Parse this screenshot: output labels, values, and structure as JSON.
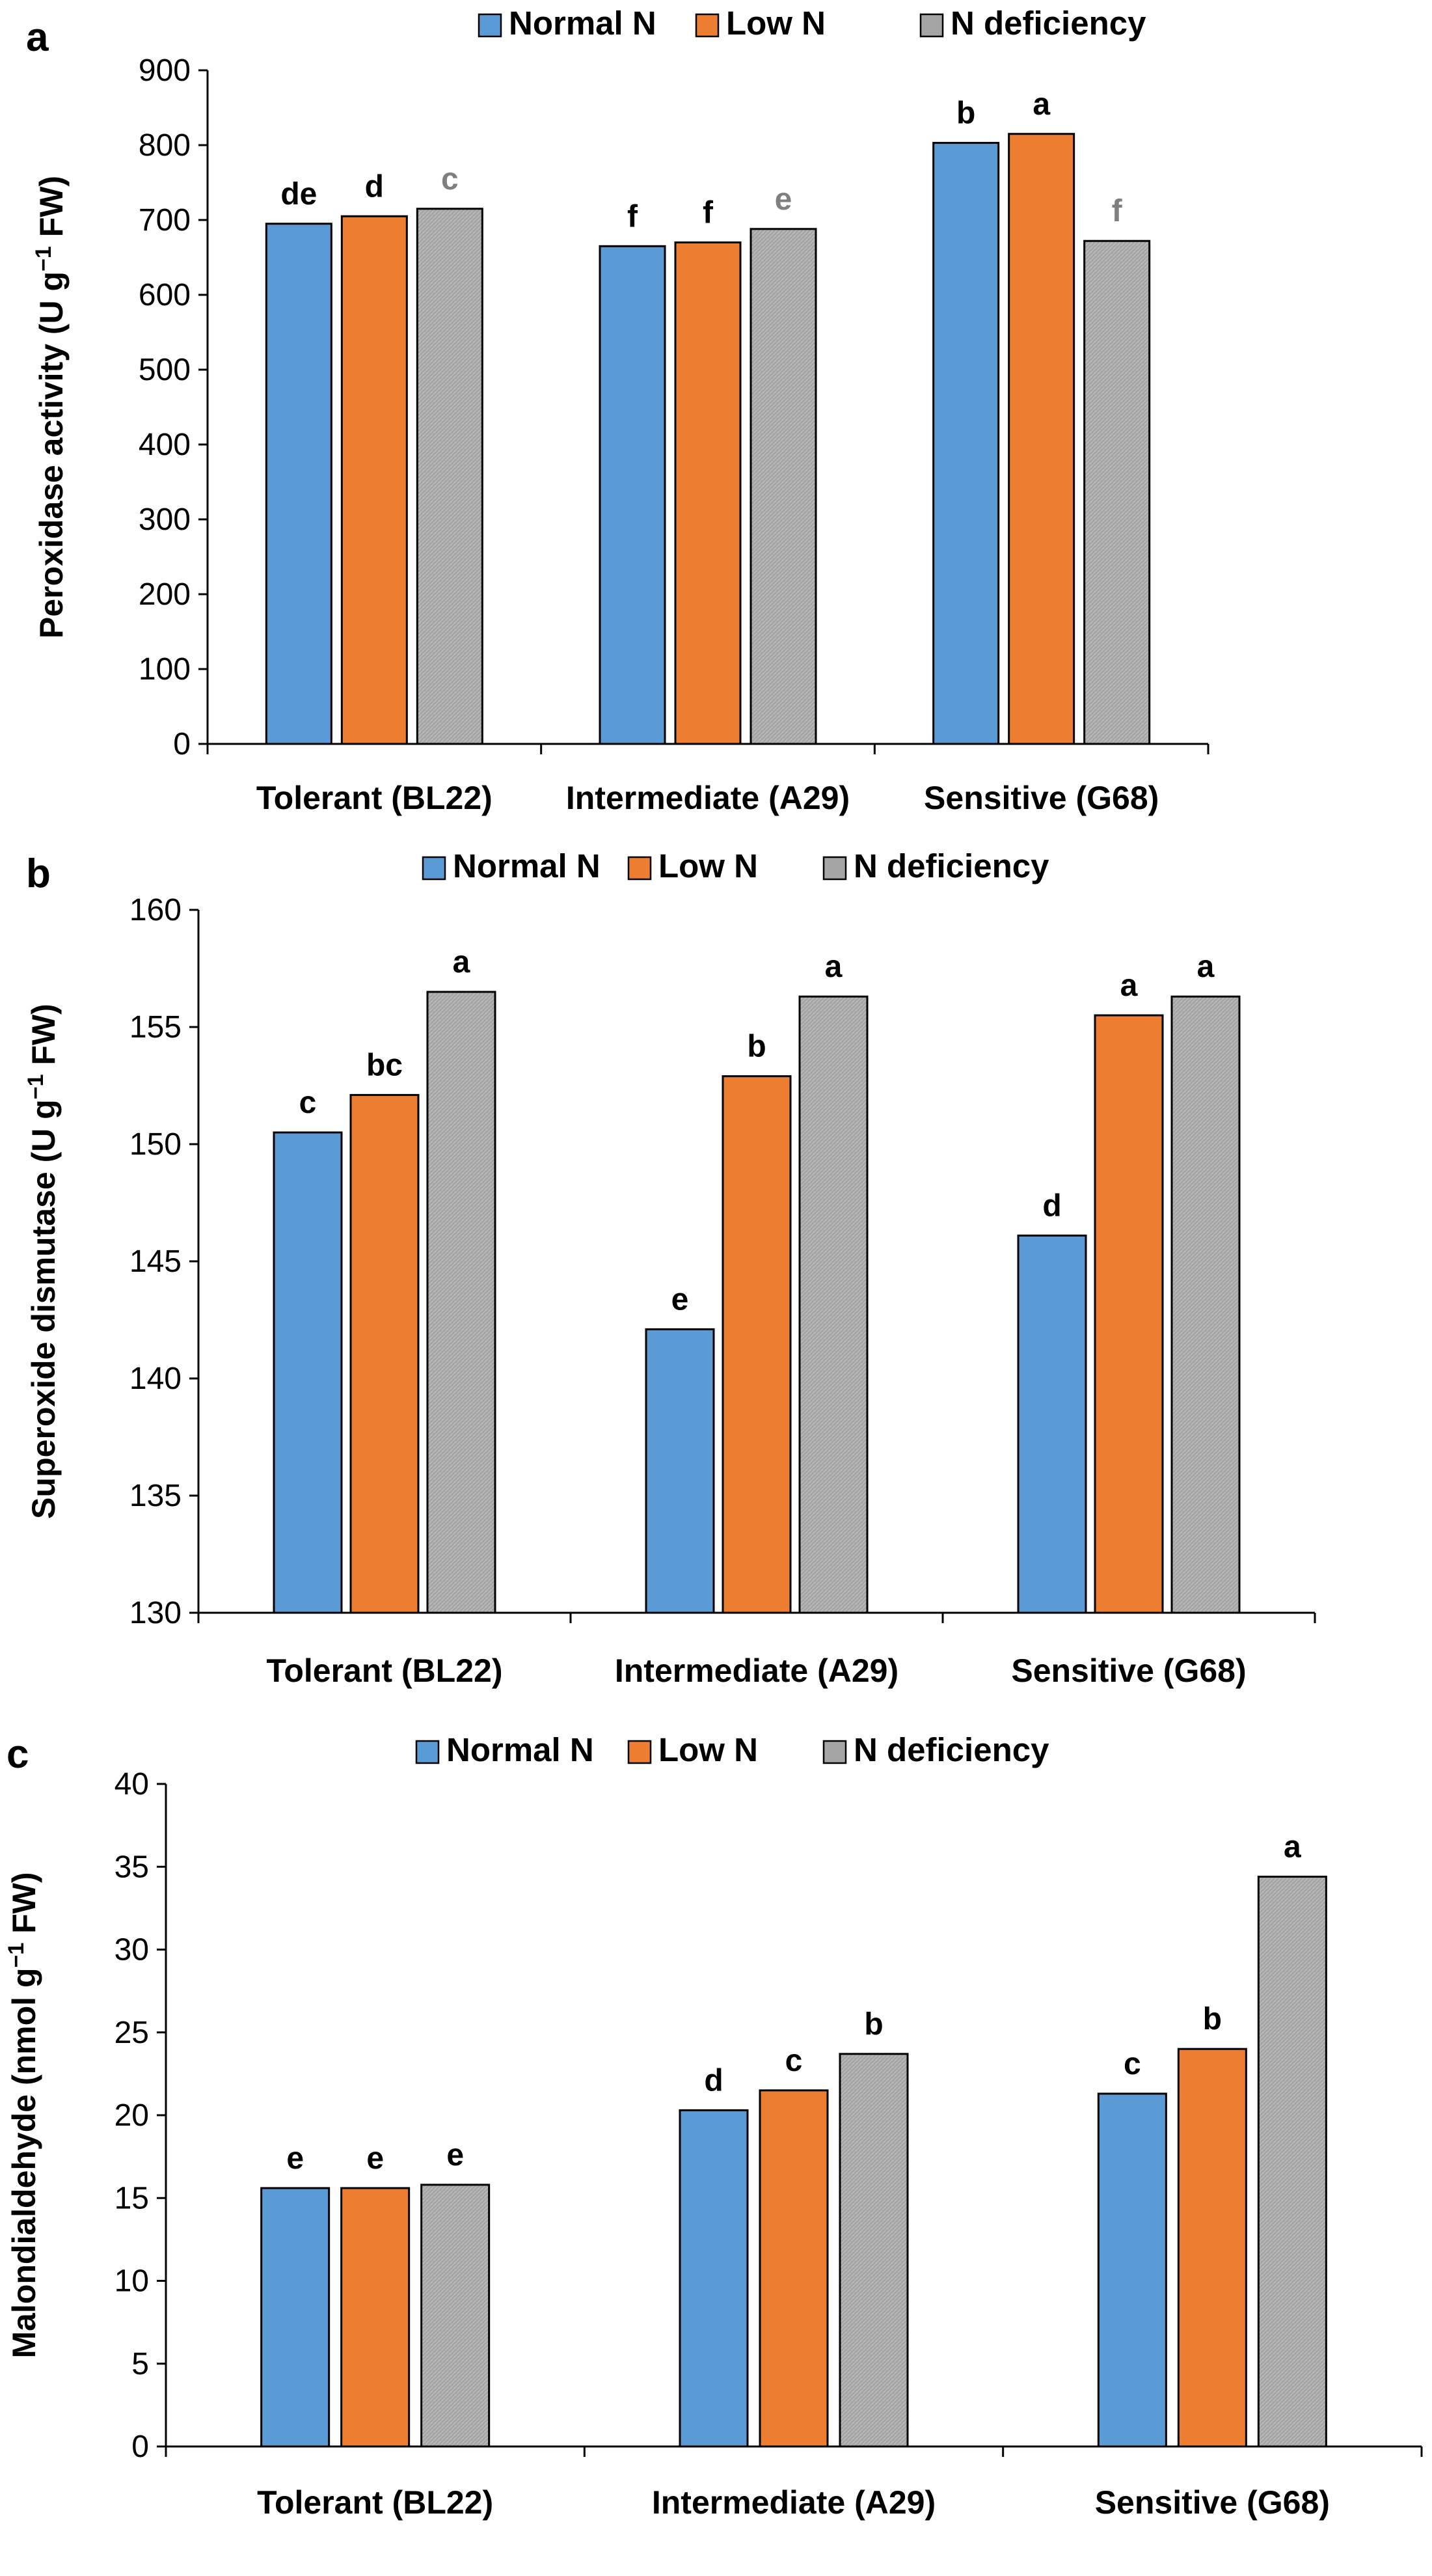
{
  "colors": {
    "normal": "#5B9BD5",
    "low": "#ED7D31",
    "deficiency": "#A5A5A5",
    "letter_default": "#000000",
    "letter_grey": "#7F7F7F"
  },
  "chart_data": [
    {
      "type": "bar",
      "panel": "a",
      "title": "",
      "ylabel_main": "Peroxidase activity (U g",
      "ylabel_sup": "−1",
      "ylabel_end": " FW)",
      "xlabel": "",
      "ylim": [
        0,
        900
      ],
      "yticks": [
        0,
        100,
        200,
        300,
        400,
        500,
        600,
        700,
        800,
        900
      ],
      "categories": [
        "Tolerant (BL22)",
        "Intermediate (A29)",
        "Sensitive (G68)"
      ],
      "legend": [
        "Normal N",
        "Low N",
        "N deficiency"
      ],
      "series": [
        {
          "name": "Normal N",
          "values": [
            695,
            665,
            803
          ],
          "letters": [
            "de",
            "f",
            "b"
          ]
        },
        {
          "name": "Low N",
          "values": [
            705,
            670,
            815
          ],
          "letters": [
            "d",
            "f",
            "a"
          ]
        },
        {
          "name": "N deficiency",
          "values": [
            715,
            688,
            672
          ],
          "letters": [
            "c",
            "e",
            "f"
          ],
          "letter_color": "grey"
        }
      ]
    },
    {
      "type": "bar",
      "panel": "b",
      "title": "",
      "ylabel_main": "Superoxide dismutase (U g",
      "ylabel_sup": "−1",
      "ylabel_end": " FW)",
      "xlabel": "",
      "ylim": [
        130,
        160
      ],
      "yticks": [
        130,
        135,
        140,
        145,
        150,
        155,
        160
      ],
      "categories": [
        "Tolerant (BL22)",
        "Intermediate (A29)",
        "Sensitive (G68)"
      ],
      "legend": [
        "Normal N",
        "Low N",
        "N deficiency"
      ],
      "series": [
        {
          "name": "Normal N",
          "values": [
            150.5,
            142.1,
            146.1
          ],
          "letters": [
            "c",
            "e",
            "d"
          ]
        },
        {
          "name": "Low N",
          "values": [
            152.1,
            152.9,
            155.5
          ],
          "letters": [
            "bc",
            "b",
            "a"
          ]
        },
        {
          "name": "N deficiency",
          "values": [
            156.5,
            156.3,
            156.3
          ],
          "letters": [
            "a",
            "a",
            "a"
          ]
        }
      ]
    },
    {
      "type": "bar",
      "panel": "c",
      "title": "",
      "ylabel_main": "Malondialdehyde (nmol g",
      "ylabel_sup": "−1",
      "ylabel_end": " FW)",
      "xlabel": "",
      "ylim": [
        0,
        40
      ],
      "yticks": [
        0,
        5,
        10,
        15,
        20,
        25,
        30,
        35,
        40
      ],
      "categories": [
        "Tolerant (BL22)",
        "Intermediate (A29)",
        "Sensitive (G68)"
      ],
      "legend": [
        "Normal N",
        "Low N",
        "N deficiency"
      ],
      "series": [
        {
          "name": "Normal N",
          "values": [
            15.6,
            20.3,
            21.3
          ],
          "letters": [
            "e",
            "d",
            "c"
          ]
        },
        {
          "name": "Low N",
          "values": [
            15.6,
            21.5,
            24.0
          ],
          "letters": [
            "e",
            "c",
            "b"
          ]
        },
        {
          "name": "N deficiency",
          "values": [
            15.8,
            23.7,
            34.4
          ],
          "letters": [
            "e",
            "b",
            "a"
          ]
        }
      ]
    }
  ]
}
